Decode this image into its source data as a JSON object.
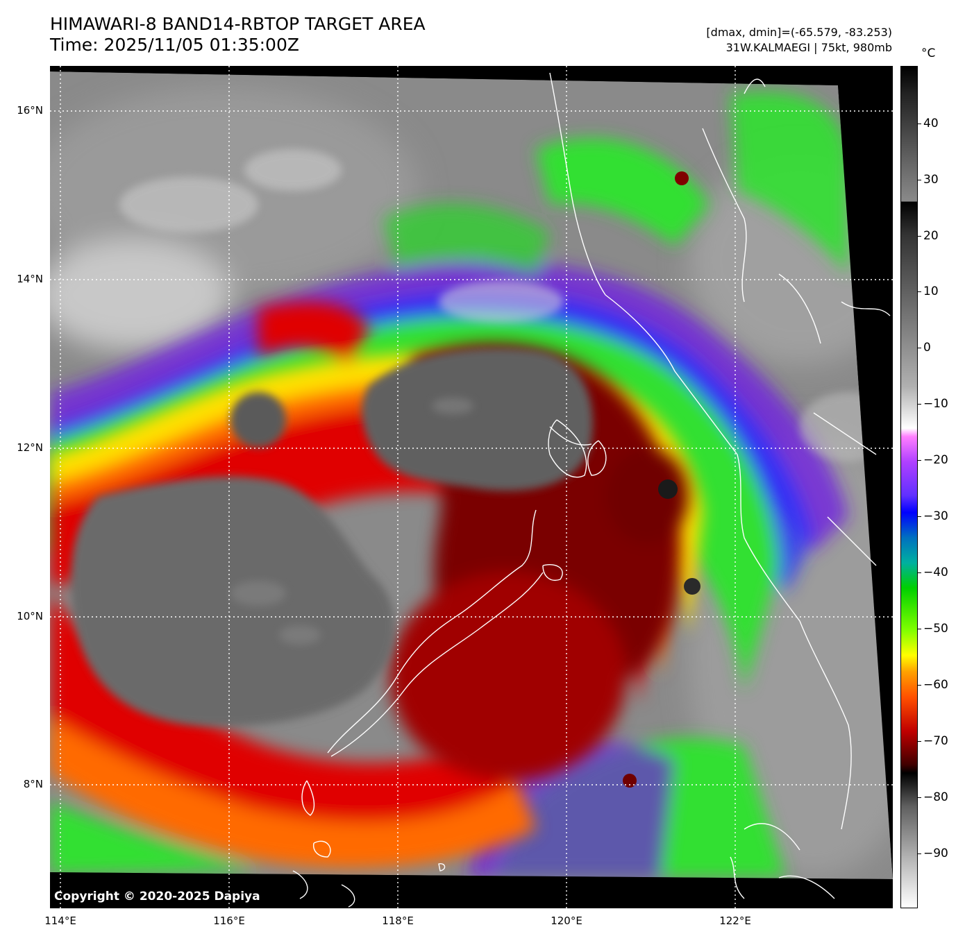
{
  "header": {
    "title": "HIMAWARI-8 BAND14-RBTOP TARGET AREA",
    "time": "Time: 2025/11/05 01:35:00Z",
    "range": "[dmax, dmin]=(-65.579, -83.253)",
    "storm": "31W.KALMAEGI | 75kt, 980mb"
  },
  "colorbar": {
    "unit": "°C",
    "ticks": [
      "40",
      "30",
      "20",
      "10",
      "0",
      "−10",
      "−20",
      "−30",
      "−40",
      "−50",
      "−60",
      "−70",
      "−80",
      "−90"
    ]
  },
  "axes": {
    "lat_labels": [
      "16°N",
      "14°N",
      "12°N",
      "10°N",
      "8°N"
    ],
    "lon_labels": [
      "114°E",
      "116°E",
      "118°E",
      "120°E",
      "122°E"
    ]
  },
  "map": {
    "copyright": "Copyright © 2020-2025 Dapiya"
  }
}
